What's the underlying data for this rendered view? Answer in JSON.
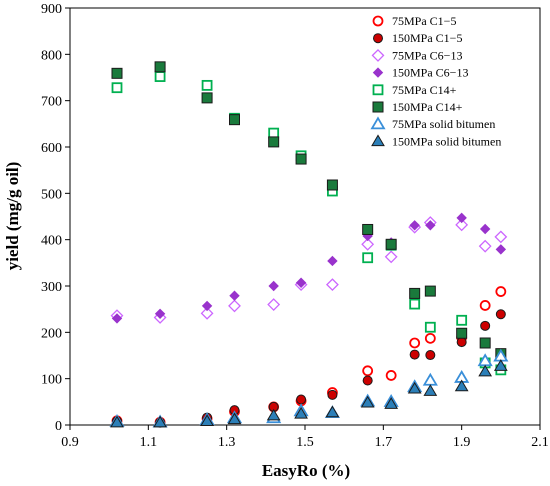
{
  "chart_data": {
    "type": "scatter",
    "xlabel": "EasyRo (%)",
    "ylabel": "yield (mg/g oil)",
    "xlim": [
      0.9,
      2.1
    ],
    "ylim": [
      0,
      900
    ],
    "xticks": [
      "0.9",
      "1.1",
      "1.3",
      "1.5",
      "1.7",
      "1.9",
      "2.1"
    ],
    "yticks": [
      "0",
      "100",
      "200",
      "300",
      "400",
      "500",
      "600",
      "700",
      "800",
      "900"
    ],
    "grid": false,
    "legend_position": "top-right",
    "series": [
      {
        "name": "75MPa C1−5",
        "marker": "circle-open",
        "color": "#ff0000",
        "points": [
          [
            1.02,
            9
          ],
          [
            1.13,
            6
          ],
          [
            1.25,
            14
          ],
          [
            1.32,
            29
          ],
          [
            1.42,
            39
          ],
          [
            1.49,
            52
          ],
          [
            1.57,
            70
          ],
          [
            1.66,
            117
          ],
          [
            1.72,
            107
          ],
          [
            1.78,
            177
          ],
          [
            1.82,
            187
          ],
          [
            1.9,
            189
          ],
          [
            1.96,
            258
          ],
          [
            2.0,
            288
          ]
        ]
      },
      {
        "name": "150MPa C1−5",
        "marker": "circle-filled",
        "color": "#cc0000",
        "points": [
          [
            1.02,
            8
          ],
          [
            1.13,
            5
          ],
          [
            1.25,
            16
          ],
          [
            1.32,
            32
          ],
          [
            1.42,
            39
          ],
          [
            1.49,
            55
          ],
          [
            1.57,
            65
          ],
          [
            1.66,
            96
          ],
          [
            1.78,
            152
          ],
          [
            1.82,
            151
          ],
          [
            1.9,
            179
          ],
          [
            1.96,
            214
          ],
          [
            2.0,
            239
          ]
        ]
      },
      {
        "name": "75MPa C6−13",
        "marker": "diamond-open",
        "color": "#cc66ff",
        "points": [
          [
            1.02,
            236
          ],
          [
            1.13,
            232
          ],
          [
            1.25,
            241
          ],
          [
            1.32,
            257
          ],
          [
            1.42,
            260
          ],
          [
            1.49,
            303
          ],
          [
            1.57,
            303
          ],
          [
            1.66,
            390
          ],
          [
            1.72,
            363
          ],
          [
            1.78,
            427
          ],
          [
            1.82,
            437
          ],
          [
            1.9,
            432
          ],
          [
            1.96,
            386
          ],
          [
            2.0,
            406
          ]
        ]
      },
      {
        "name": "150MPa C6−13",
        "marker": "diamond-filled",
        "color": "#9933cc",
        "points": [
          [
            1.02,
            230
          ],
          [
            1.13,
            240
          ],
          [
            1.25,
            257
          ],
          [
            1.32,
            279
          ],
          [
            1.42,
            300
          ],
          [
            1.49,
            307
          ],
          [
            1.57,
            354
          ],
          [
            1.66,
            408
          ],
          [
            1.72,
            394
          ],
          [
            1.78,
            431
          ],
          [
            1.82,
            431
          ],
          [
            1.9,
            447
          ],
          [
            1.96,
            423
          ],
          [
            2.0,
            379
          ]
        ]
      },
      {
        "name": "75MPa C14+",
        "marker": "square-open",
        "color": "#00b050",
        "points": [
          [
            1.02,
            728
          ],
          [
            1.13,
            752
          ],
          [
            1.25,
            733
          ],
          [
            1.32,
            662
          ],
          [
            1.42,
            630
          ],
          [
            1.49,
            581
          ],
          [
            1.57,
            505
          ],
          [
            1.66,
            361
          ],
          [
            1.72,
            388
          ],
          [
            1.78,
            261
          ],
          [
            1.82,
            211
          ],
          [
            1.9,
            226
          ],
          [
            1.96,
            134
          ],
          [
            2.0,
            119
          ]
        ]
      },
      {
        "name": "150MPa C14+",
        "marker": "square-filled",
        "color": "#1a7a3c",
        "points": [
          [
            1.02,
            759
          ],
          [
            1.13,
            773
          ],
          [
            1.25,
            706
          ],
          [
            1.32,
            659
          ],
          [
            1.42,
            611
          ],
          [
            1.49,
            574
          ],
          [
            1.57,
            518
          ],
          [
            1.66,
            422
          ],
          [
            1.72,
            390
          ],
          [
            1.78,
            284
          ],
          [
            1.82,
            289
          ],
          [
            1.9,
            198
          ],
          [
            1.96,
            177
          ],
          [
            2.0,
            154
          ]
        ]
      },
      {
        "name": "75MPa solid bitumen",
        "marker": "triangle-open",
        "color": "#3a8fd9",
        "points": [
          [
            1.02,
            7
          ],
          [
            1.13,
            6
          ],
          [
            1.25,
            11
          ],
          [
            1.32,
            15
          ],
          [
            1.42,
            15
          ],
          [
            1.49,
            30
          ],
          [
            1.57,
            26
          ],
          [
            1.66,
            51
          ],
          [
            1.72,
            50
          ],
          [
            1.78,
            82
          ],
          [
            1.82,
            96
          ],
          [
            1.9,
            102
          ],
          [
            1.96,
            138
          ],
          [
            2.0,
            148
          ]
        ]
      },
      {
        "name": "150MPa solid bitumen",
        "marker": "triangle-filled",
        "color": "#2c7fb8",
        "points": [
          [
            1.02,
            5
          ],
          [
            1.13,
            5
          ],
          [
            1.25,
            8
          ],
          [
            1.32,
            12
          ],
          [
            1.42,
            20
          ],
          [
            1.49,
            24
          ],
          [
            1.57,
            27
          ],
          [
            1.66,
            48
          ],
          [
            1.72,
            45
          ],
          [
            1.78,
            78
          ],
          [
            1.82,
            73
          ],
          [
            1.9,
            83
          ],
          [
            1.96,
            115
          ],
          [
            2.0,
            127
          ]
        ]
      }
    ]
  }
}
